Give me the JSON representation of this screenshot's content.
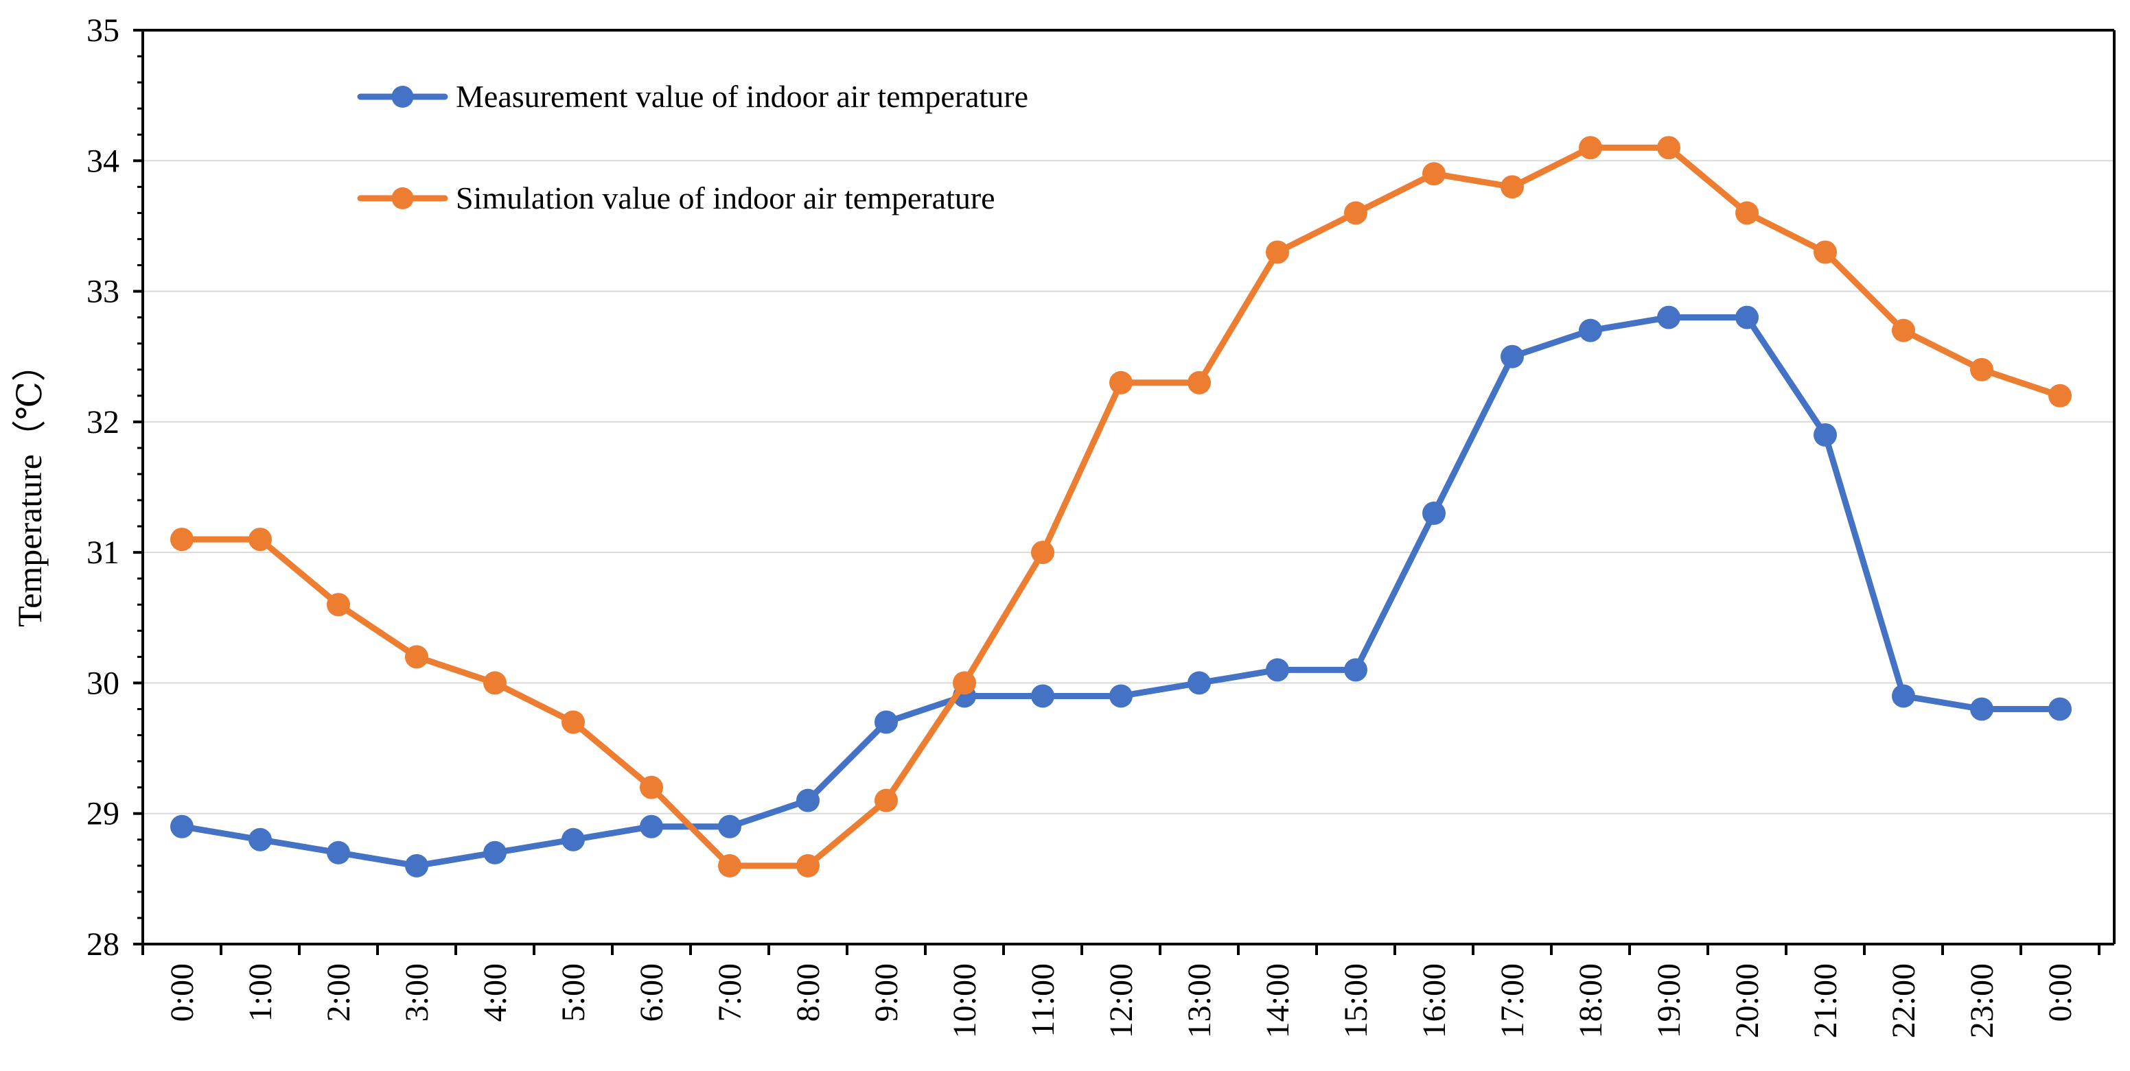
{
  "chart_data": {
    "type": "line",
    "title": "",
    "xlabel": "",
    "ylabel": "Temperature（℃）",
    "ylim": [
      28,
      35
    ],
    "yticks": [
      28,
      29,
      30,
      31,
      32,
      33,
      34,
      35
    ],
    "grid": "horizontal",
    "legend_position": "top-left",
    "categories": [
      "0:00",
      "1:00",
      "2:00",
      "3:00",
      "4:00",
      "5:00",
      "6:00",
      "7:00",
      "8:00",
      "9:00",
      "10:00",
      "11:00",
      "12:00",
      "13:00",
      "14:00",
      "15:00",
      "16:00",
      "17:00",
      "18:00",
      "19:00",
      "20:00",
      "21:00",
      "22:00",
      "23:00",
      "0:00"
    ],
    "series": [
      {
        "name": "Measurement value of indoor air temperature",
        "color": "#4472C4",
        "values": [
          28.9,
          28.8,
          28.7,
          28.6,
          28.7,
          28.8,
          28.9,
          28.9,
          29.1,
          29.7,
          29.9,
          29.9,
          29.9,
          30.0,
          30.1,
          30.1,
          31.3,
          32.5,
          32.7,
          32.8,
          32.8,
          31.9,
          29.9,
          29.8,
          29.8
        ]
      },
      {
        "name": "Simulation value of indoor air temperature",
        "color": "#ED7D31",
        "values": [
          31.1,
          31.1,
          30.6,
          30.2,
          30.0,
          29.7,
          29.2,
          28.6,
          28.6,
          29.1,
          30.0,
          31.0,
          32.3,
          32.3,
          33.3,
          33.6,
          33.9,
          33.8,
          34.1,
          34.1,
          33.6,
          33.3,
          32.7,
          32.4,
          32.2
        ]
      }
    ]
  }
}
